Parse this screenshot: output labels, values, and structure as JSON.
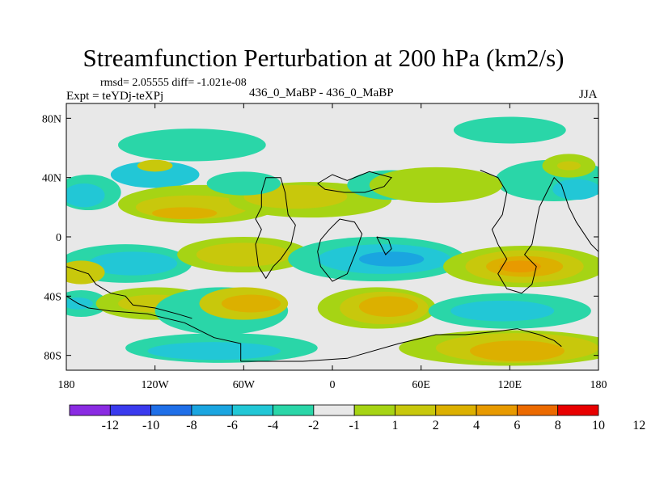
{
  "chart_data": {
    "type": "heatmap",
    "title": "Streamfunction Perturbation at 200 hPa (km2/s)",
    "stats_text": "rmsd= 2.05555 diff= -1.021e-08",
    "left_label": "Expt = teYDj-teXPj",
    "center_label": "436_0_MaBP - 436_0_MaBP",
    "right_label": "JJA",
    "x_range": [
      -180,
      180
    ],
    "y_range": [
      -90,
      90
    ],
    "x_ticks": [
      {
        "value": -180,
        "label": "180"
      },
      {
        "value": -120,
        "label": "120W"
      },
      {
        "value": -60,
        "label": "60W"
      },
      {
        "value": 0,
        "label": "0"
      },
      {
        "value": 60,
        "label": "60E"
      },
      {
        "value": 120,
        "label": "120E"
      },
      {
        "value": 180,
        "label": "180"
      }
    ],
    "y_ticks": [
      {
        "value": 80,
        "label": "80N"
      },
      {
        "value": 40,
        "label": "40N"
      },
      {
        "value": 0,
        "label": "0"
      },
      {
        "value": -40,
        "label": "40S"
      },
      {
        "value": -80,
        "label": "80S"
      }
    ],
    "colorbar": {
      "colors": [
        "#8a2be2",
        "#3a3aee",
        "#1f6fe8",
        "#1aa5e0",
        "#22c7d6",
        "#2ad6a8",
        "#e8e8e8",
        "#a6d414",
        "#c8c80c",
        "#dcb000",
        "#e89a00",
        "#ec6a00",
        "#e80000"
      ],
      "labels": [
        "-12",
        "-10",
        "-8",
        "-6",
        "-4",
        "-2",
        "-1",
        "1",
        "2",
        "4",
        "6",
        "8",
        "10",
        "12"
      ]
    },
    "field_blobs": [
      {
        "lon": -95,
        "lat": 62,
        "rlon": 50,
        "rlat": 11,
        "level": -2
      },
      {
        "lon": -120,
        "lat": 42,
        "rlon": 30,
        "rlat": 9,
        "level": -4
      },
      {
        "lon": -120,
        "lat": 48,
        "rlon": 12,
        "rlat": 4,
        "level": 2
      },
      {
        "lon": -165,
        "lat": 30,
        "rlon": 22,
        "rlat": 12,
        "level": -2
      },
      {
        "lon": -168,
        "lat": 28,
        "rlon": 14,
        "rlat": 8,
        "level": -4
      },
      {
        "lon": -90,
        "lat": 22,
        "rlon": 55,
        "rlat": 13,
        "level": 1
      },
      {
        "lon": -95,
        "lat": 20,
        "rlon": 38,
        "rlat": 8,
        "level": 2
      },
      {
        "lon": -100,
        "lat": 16,
        "rlon": 22,
        "rlat": 4,
        "level": 4
      },
      {
        "lon": -15,
        "lat": 25,
        "rlon": 55,
        "rlat": 12,
        "level": 1
      },
      {
        "lon": -25,
        "lat": 27,
        "rlon": 35,
        "rlat": 8,
        "level": 2
      },
      {
        "lon": -60,
        "lat": 36,
        "rlon": 25,
        "rlat": 8,
        "level": -2
      },
      {
        "lon": 40,
        "lat": 35,
        "rlon": 30,
        "rlat": 10,
        "level": -2
      },
      {
        "lon": 150,
        "lat": 38,
        "rlon": 40,
        "rlat": 14,
        "level": -2
      },
      {
        "lon": 165,
        "lat": 32,
        "rlon": 16,
        "rlat": 7,
        "level": -4
      },
      {
        "lon": 160,
        "lat": 48,
        "rlon": 18,
        "rlat": 8,
        "level": 1
      },
      {
        "lon": 160,
        "lat": 48,
        "rlon": 8,
        "rlat": 3,
        "level": 2
      },
      {
        "lon": 120,
        "lat": 72,
        "rlon": 38,
        "rlat": 9,
        "level": -2
      },
      {
        "lon": 70,
        "lat": 35,
        "rlon": 45,
        "rlat": 12,
        "level": 1
      },
      {
        "lon": -140,
        "lat": -18,
        "rlon": 45,
        "rlat": 13,
        "level": -2
      },
      {
        "lon": -135,
        "lat": -18,
        "rlon": 30,
        "rlat": 8,
        "level": -4
      },
      {
        "lon": -60,
        "lat": -12,
        "rlon": 45,
        "rlat": 12,
        "level": 1
      },
      {
        "lon": -60,
        "lat": -12,
        "rlon": 32,
        "rlat": 8,
        "level": 2
      },
      {
        "lon": 30,
        "lat": -15,
        "rlon": 60,
        "rlat": 15,
        "level": -2
      },
      {
        "lon": 35,
        "lat": -15,
        "rlon": 45,
        "rlat": 10,
        "level": -4
      },
      {
        "lon": 40,
        "lat": -15,
        "rlon": 22,
        "rlat": 5,
        "level": -6
      },
      {
        "lon": 130,
        "lat": -20,
        "rlon": 55,
        "rlat": 14,
        "level": 1
      },
      {
        "lon": 130,
        "lat": -20,
        "rlon": 40,
        "rlat": 11,
        "level": 2
      },
      {
        "lon": 130,
        "lat": -20,
        "rlon": 26,
        "rlat": 7,
        "level": 4
      },
      {
        "lon": 127,
        "lat": -20,
        "rlon": 14,
        "rlat": 4,
        "level": 6
      },
      {
        "lon": -170,
        "lat": -24,
        "rlon": 16,
        "rlat": 8,
        "level": 2
      },
      {
        "lon": -170,
        "lat": -45,
        "rlon": 18,
        "rlat": 9,
        "level": -2
      },
      {
        "lon": -172,
        "lat": -45,
        "rlon": 10,
        "rlat": 4,
        "level": -4
      },
      {
        "lon": -120,
        "lat": -45,
        "rlon": 40,
        "rlat": 11,
        "level": 1
      },
      {
        "lon": -120,
        "lat": -45,
        "rlon": 25,
        "rlat": 6,
        "level": 2
      },
      {
        "lon": -75,
        "lat": -50,
        "rlon": 45,
        "rlat": 16,
        "level": -2
      },
      {
        "lon": -60,
        "lat": -45,
        "rlon": 30,
        "rlat": 11,
        "level": 2
      },
      {
        "lon": -55,
        "lat": -45,
        "rlon": 20,
        "rlat": 6,
        "level": 4
      },
      {
        "lon": 30,
        "lat": -48,
        "rlon": 40,
        "rlat": 14,
        "level": 1
      },
      {
        "lon": 35,
        "lat": -48,
        "rlon": 30,
        "rlat": 11,
        "level": 2
      },
      {
        "lon": 38,
        "lat": -47,
        "rlon": 20,
        "rlat": 7,
        "level": 4
      },
      {
        "lon": 120,
        "lat": -50,
        "rlon": 55,
        "rlat": 12,
        "level": -2
      },
      {
        "lon": 115,
        "lat": -50,
        "rlon": 35,
        "rlat": 7,
        "level": -4
      },
      {
        "lon": -75,
        "lat": -75,
        "rlon": 65,
        "rlat": 10,
        "level": -2
      },
      {
        "lon": -80,
        "lat": -77,
        "rlon": 45,
        "rlat": 6,
        "level": -4
      },
      {
        "lon": 120,
        "lat": -75,
        "rlon": 75,
        "rlat": 12,
        "level": 1
      },
      {
        "lon": 125,
        "lat": -75,
        "rlon": 55,
        "rlat": 10,
        "level": 2
      },
      {
        "lon": 125,
        "lat": -77,
        "rlon": 32,
        "rlat": 7,
        "level": 4
      }
    ],
    "coastlines": [
      [
        [
          -62,
          -84
        ],
        [
          -62,
          -72
        ],
        [
          -80,
          -68
        ],
        [
          -100,
          -58
        ],
        [
          -125,
          -52
        ],
        [
          -150,
          -50
        ],
        [
          -165,
          -48
        ],
        [
          -172,
          -45
        ],
        [
          -180,
          -40
        ]
      ],
      [
        [
          -62,
          -84
        ],
        [
          -20,
          -84
        ],
        [
          10,
          -82
        ],
        [
          45,
          -72
        ],
        [
          70,
          -66
        ],
        [
          90,
          -66
        ],
        [
          110,
          -64
        ],
        [
          125,
          -62
        ],
        [
          140,
          -66
        ],
        [
          150,
          -70
        ],
        [
          155,
          -74
        ]
      ],
      [
        [
          -180,
          -20
        ],
        [
          -165,
          -25
        ],
        [
          -160,
          -32
        ],
        [
          -150,
          -38
        ],
        [
          -140,
          -40
        ],
        [
          -135,
          -46
        ],
        [
          -120,
          -48
        ],
        [
          -105,
          -52
        ],
        [
          -95,
          -55
        ]
      ],
      [
        [
          -48,
          30
        ],
        [
          -45,
          40
        ],
        [
          -35,
          40
        ],
        [
          -32,
          30
        ],
        [
          -30,
          15
        ],
        [
          -25,
          8
        ],
        [
          -28,
          -5
        ],
        [
          -35,
          -15
        ],
        [
          -40,
          -20
        ],
        [
          -45,
          -28
        ],
        [
          -50,
          -20
        ],
        [
          -52,
          -5
        ],
        [
          -48,
          5
        ],
        [
          -52,
          12
        ],
        [
          -48,
          20
        ],
        [
          -48,
          30
        ]
      ],
      [
        [
          -10,
          36
        ],
        [
          0,
          42
        ],
        [
          10,
          38
        ],
        [
          25,
          44
        ],
        [
          40,
          40
        ],
        [
          35,
          34
        ],
        [
          22,
          30
        ],
        [
          8,
          30
        ],
        [
          -5,
          32
        ],
        [
          -10,
          36
        ]
      ],
      [
        [
          -8,
          -2
        ],
        [
          -2,
          5
        ],
        [
          5,
          12
        ],
        [
          15,
          10
        ],
        [
          20,
          2
        ],
        [
          16,
          -10
        ],
        [
          10,
          -25
        ],
        [
          0,
          -30
        ],
        [
          -8,
          -20
        ],
        [
          -10,
          -10
        ],
        [
          -8,
          -2
        ]
      ],
      [
        [
          100,
          45
        ],
        [
          112,
          40
        ],
        [
          118,
          30
        ],
        [
          115,
          15
        ],
        [
          108,
          5
        ],
        [
          112,
          -5
        ],
        [
          118,
          -15
        ],
        [
          112,
          -25
        ],
        [
          118,
          -35
        ],
        [
          128,
          -38
        ],
        [
          135,
          -32
        ],
        [
          138,
          -20
        ],
        [
          130,
          -12
        ],
        [
          135,
          -5
        ],
        [
          138,
          10
        ],
        [
          140,
          20
        ],
        [
          145,
          30
        ],
        [
          150,
          40
        ],
        [
          155,
          35
        ],
        [
          160,
          20
        ],
        [
          165,
          10
        ],
        [
          175,
          -5
        ],
        [
          180,
          -10
        ]
      ],
      [
        [
          30,
          0
        ],
        [
          38,
          -2
        ],
        [
          40,
          -8
        ],
        [
          36,
          -12
        ],
        [
          30,
          0
        ]
      ]
    ]
  }
}
